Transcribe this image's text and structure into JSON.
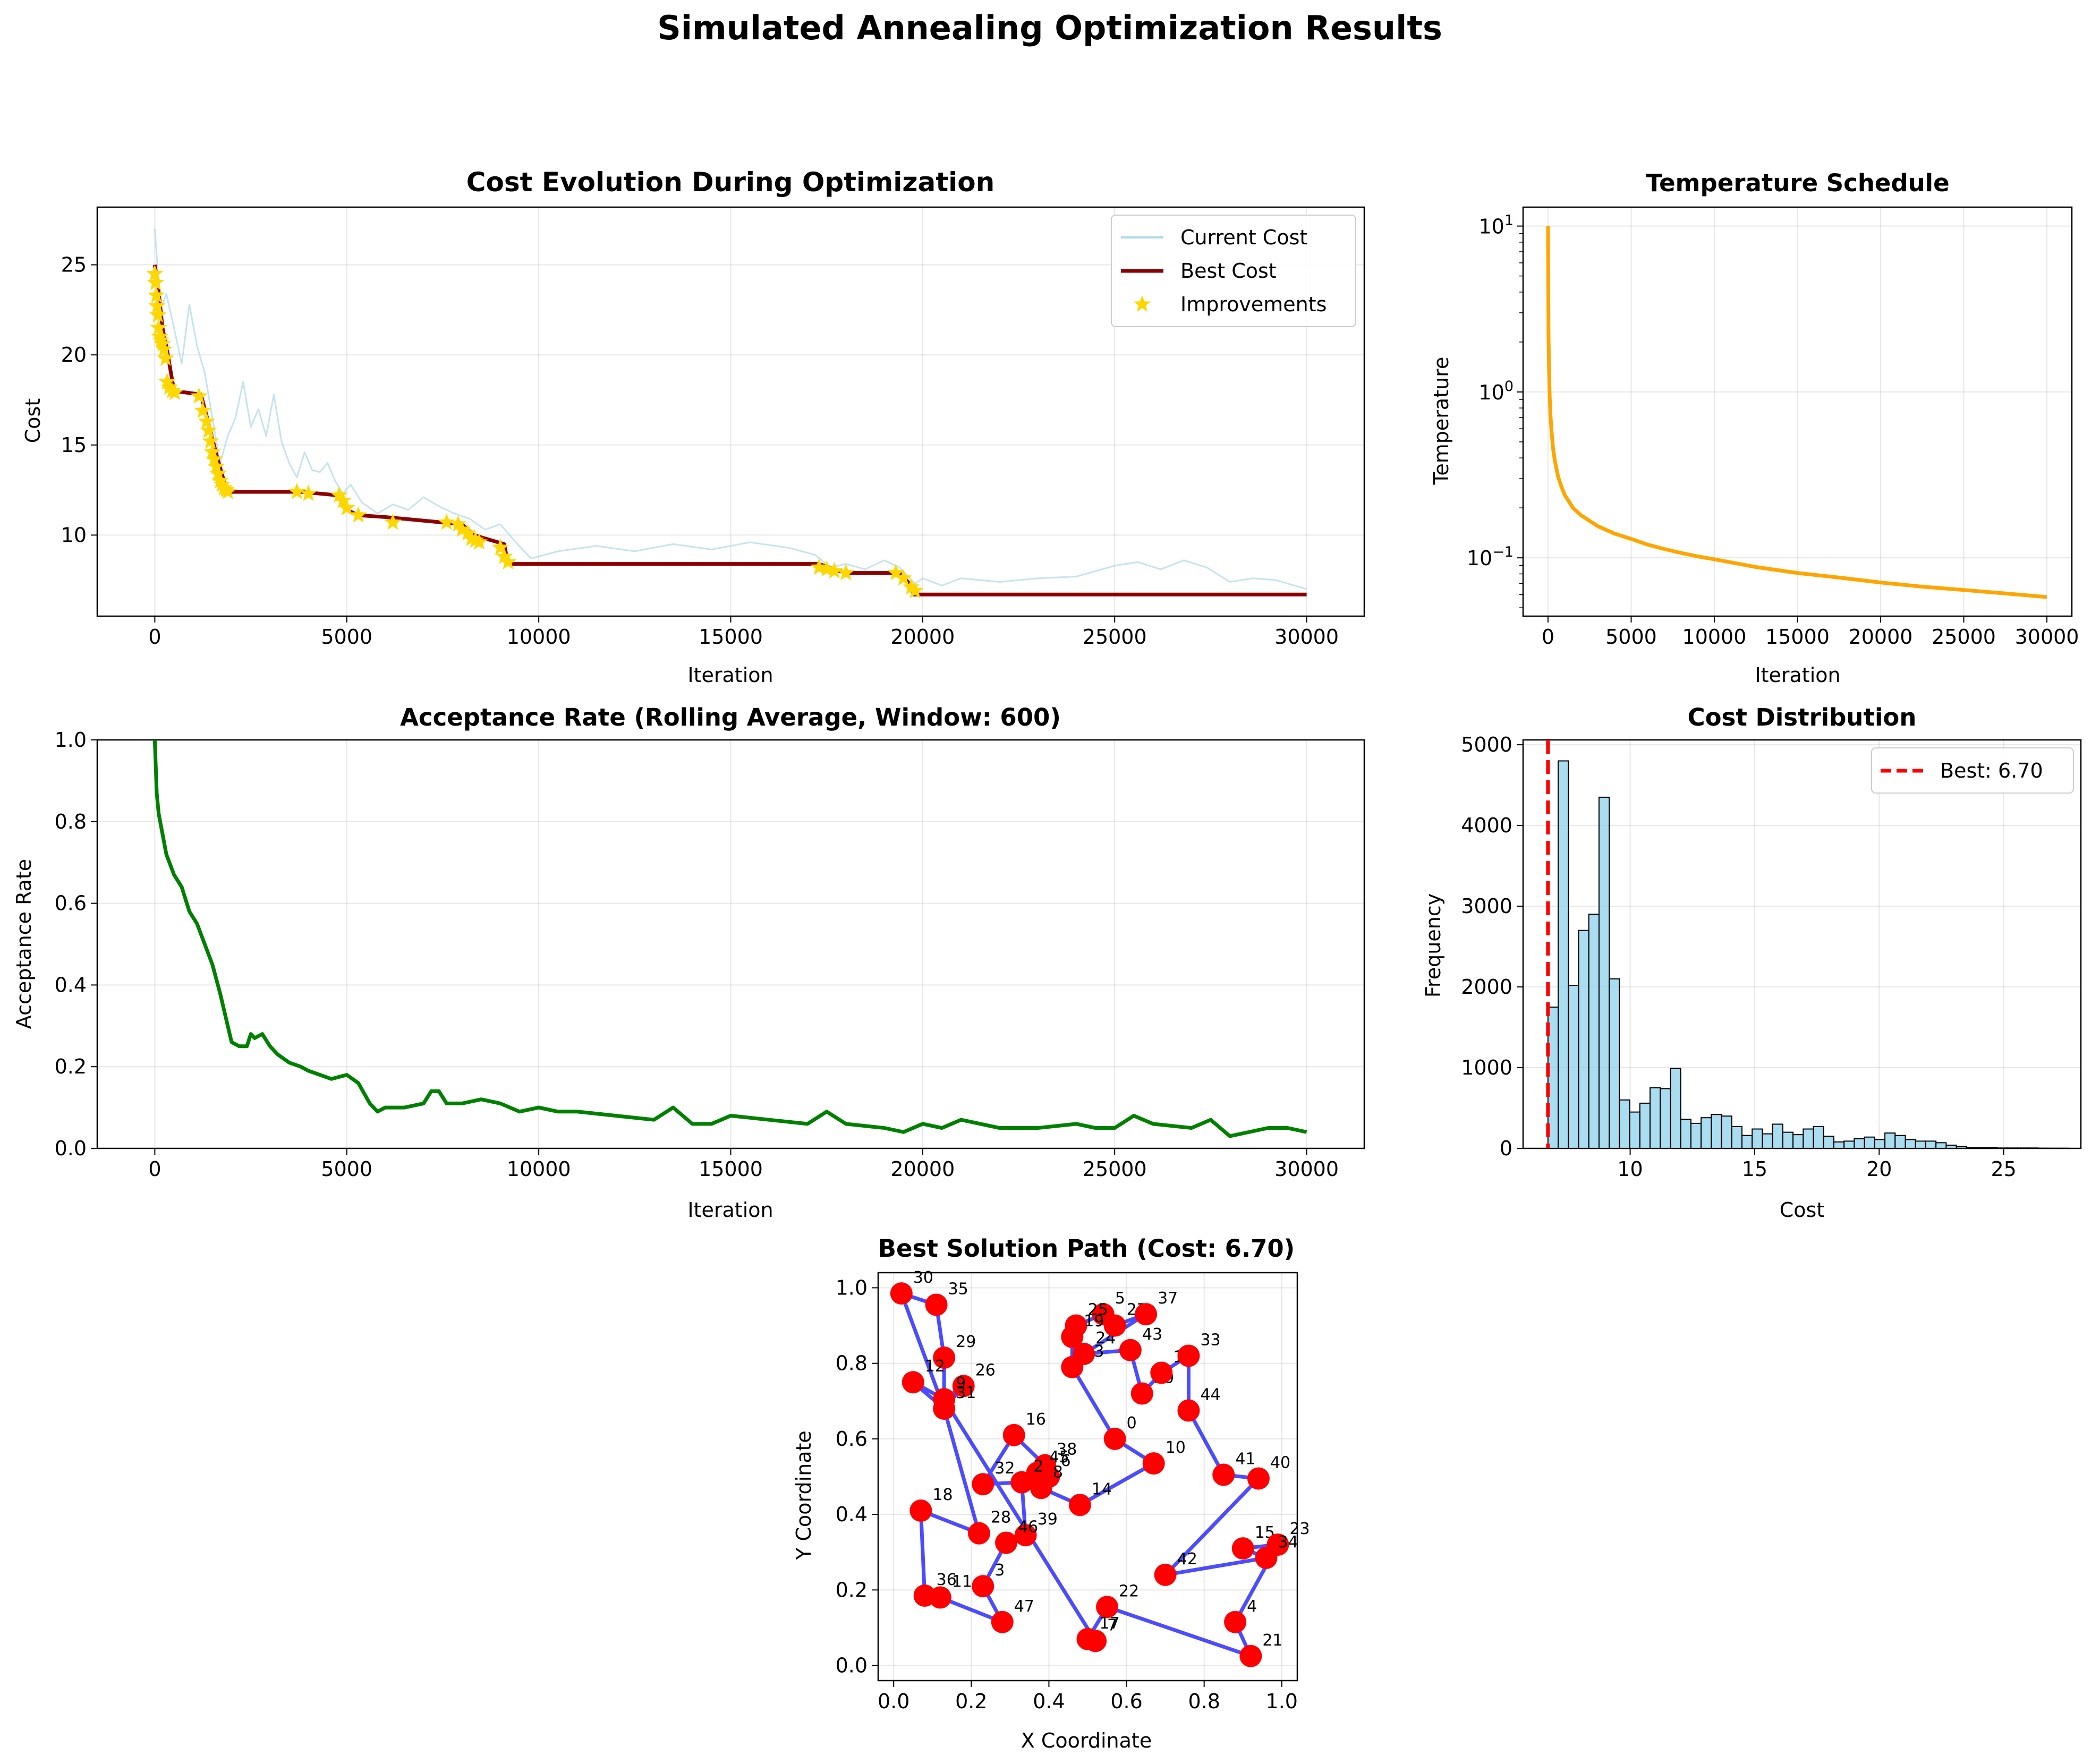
{
  "suptitle": "Simulated Annealing Optimization Results",
  "colors": {
    "current": "#add8e6",
    "best": "#8b0000",
    "improve": "#ffd700",
    "temp": "#ffa500",
    "accept": "#008000",
    "hist": "#87ceeb",
    "bestline": "#ff0000",
    "path": "#0000ff",
    "city": "#ff0000"
  },
  "chart_data": [
    {
      "type": "line",
      "title": "Cost Evolution During Optimization",
      "xlabel": "Iteration",
      "ylabel": "Cost",
      "xlim": [
        -1500,
        31500
      ],
      "ylim": [
        5.5,
        28.2
      ],
      "xticks": [
        0,
        5000,
        10000,
        15000,
        20000,
        25000,
        30000
      ],
      "yticks": [
        10,
        15,
        20,
        25
      ],
      "legend": {
        "position": "top-right",
        "entries": [
          "Current Cost",
          "Best Cost",
          "Improvements"
        ]
      },
      "grid": true,
      "series": [
        {
          "name": "Current Cost",
          "x": [
            0,
            150,
            300,
            500,
            700,
            900,
            1100,
            1300,
            1500,
            1700,
            1900,
            2100,
            2300,
            2500,
            2700,
            2900,
            3100,
            3300,
            3500,
            3700,
            3900,
            4100,
            4300,
            4500,
            4700,
            4900,
            5100,
            5400,
            5800,
            6200,
            6600,
            7000,
            7400,
            7800,
            8200,
            8600,
            9000,
            9400,
            9800,
            10500,
            11500,
            12500,
            13500,
            14500,
            15500,
            16500,
            17200,
            17600,
            18000,
            18500,
            19000,
            19400,
            19800,
            20000,
            20500,
            21000,
            22000,
            23000,
            24000,
            25000,
            25600,
            26200,
            26800,
            27400,
            28000,
            28600,
            29200,
            30000
          ],
          "y": [
            27,
            22.5,
            23.4,
            21.5,
            19.5,
            22.8,
            20.5,
            19,
            16.5,
            14,
            15.5,
            16.5,
            18.5,
            16,
            17,
            15.5,
            17.8,
            15.2,
            14,
            13.2,
            14.6,
            13.6,
            13.5,
            14,
            13,
            12.3,
            12.8,
            11.8,
            11.2,
            11.7,
            11.4,
            12.1,
            11.6,
            11.2,
            10.9,
            10.3,
            10.6,
            9.6,
            8.7,
            9.1,
            9.4,
            9.1,
            9.5,
            9.2,
            9.6,
            9.3,
            8.9,
            8.2,
            8.4,
            8.1,
            8.6,
            8.2,
            7.3,
            7.6,
            7.2,
            7.6,
            7.4,
            7.6,
            7.7,
            8.3,
            8.5,
            8.1,
            8.6,
            8.2,
            7.4,
            7.6,
            7.5,
            7.0
          ]
        },
        {
          "name": "Best Cost",
          "x": [
            0,
            100,
            200,
            300,
            500,
            1200,
            1400,
            1600,
            1800,
            1900,
            3800,
            4800,
            5000,
            5300,
            6000,
            7500,
            8000,
            8300,
            9100,
            9200,
            17300,
            17700,
            18000,
            19400,
            19700,
            19750,
            30000
          ],
          "y": [
            25,
            23.5,
            21.5,
            20.5,
            18,
            17.8,
            16.2,
            14.5,
            13,
            12.4,
            12.4,
            12.2,
            11.4,
            11.1,
            11.0,
            10.7,
            10.6,
            10.0,
            9.5,
            8.4,
            8.4,
            8.1,
            7.9,
            7.9,
            7.2,
            6.7,
            6.7
          ]
        },
        {
          "name": "Improvements",
          "x": [
            0,
            20,
            40,
            60,
            80,
            100,
            130,
            160,
            200,
            240,
            280,
            320,
            380,
            450,
            520,
            1150,
            1250,
            1350,
            1400,
            1450,
            1500,
            1550,
            1600,
            1650,
            1700,
            1750,
            1800,
            1850,
            1900,
            3700,
            4000,
            4800,
            4900,
            5000,
            5300,
            6200,
            7600,
            7900,
            8000,
            8150,
            8250,
            8350,
            8450,
            9000,
            9100,
            9200,
            17300,
            17500,
            17700,
            18000,
            19300,
            19500,
            19700,
            19800
          ],
          "y": [
            24.5,
            24,
            23.3,
            22.7,
            22.2,
            21.5,
            21,
            20.8,
            20.6,
            20.3,
            19.8,
            18.5,
            18.2,
            18.0,
            17.9,
            17.7,
            16.9,
            16.3,
            15.8,
            15.2,
            14.6,
            14.2,
            13.8,
            13.4,
            13.0,
            12.8,
            12.6,
            12.5,
            12.4,
            12.4,
            12.3,
            12.2,
            11.9,
            11.5,
            11.1,
            10.7,
            10.7,
            10.6,
            10.3,
            10.1,
            9.8,
            9.7,
            9.6,
            9.3,
            8.8,
            8.5,
            8.2,
            8.1,
            8.0,
            7.9,
            7.9,
            7.6,
            7.1,
            6.9
          ]
        }
      ]
    },
    {
      "type": "line",
      "title": "Temperature Schedule",
      "xlabel": "Iteration",
      "ylabel": "Temperature",
      "scale": "log",
      "xlim": [
        -1500,
        31500
      ],
      "ylim": [
        0.0445,
        13
      ],
      "xticks": [
        0,
        5000,
        10000,
        15000,
        20000,
        25000,
        30000
      ],
      "yticks": [
        {
          "value": 10,
          "base": "10",
          "exp": "1"
        },
        {
          "value": 1,
          "base": "10",
          "exp": "0"
        },
        {
          "value": 0.1,
          "base": "10",
          "exp": "−1"
        }
      ],
      "grid": true,
      "series": [
        {
          "x": [
            0,
            30,
            60,
            100,
            150,
            200,
            300,
            400,
            600,
            800,
            1000,
            1500,
            2000,
            3000,
            4000,
            5000,
            6000,
            7000,
            8000,
            9000,
            10000,
            12500,
            15000,
            17500,
            20000,
            22500,
            25000,
            27500,
            30000
          ],
          "y": [
            10,
            2.2,
            1.4,
            0.95,
            0.72,
            0.6,
            0.46,
            0.39,
            0.31,
            0.27,
            0.24,
            0.2,
            0.18,
            0.155,
            0.14,
            0.13,
            0.12,
            0.113,
            0.107,
            0.102,
            0.098,
            0.088,
            0.081,
            0.076,
            0.071,
            0.067,
            0.064,
            0.061,
            0.058
          ]
        }
      ]
    },
    {
      "type": "line",
      "title": "Acceptance Rate (Rolling Average, Window: 600)",
      "xlabel": "Iteration",
      "ylabel": "Acceptance Rate",
      "xlim": [
        -1500,
        31500
      ],
      "ylim": [
        0,
        1
      ],
      "xticks": [
        0,
        5000,
        10000,
        15000,
        20000,
        25000,
        30000
      ],
      "yticks": [
        0.0,
        0.2,
        0.4,
        0.6,
        0.8,
        1.0
      ],
      "grid": true,
      "series": [
        {
          "x": [
            0,
            50,
            100,
            200,
            300,
            500,
            700,
            900,
            1100,
            1300,
            1500,
            1700,
            1800,
            1900,
            2000,
            2200,
            2400,
            2500,
            2600,
            2800,
            3000,
            3200,
            3500,
            3800,
            4000,
            4300,
            4600,
            5000,
            5300,
            5600,
            5800,
            6000,
            6500,
            7000,
            7200,
            7400,
            7600,
            8000,
            8500,
            9000,
            9500,
            10000,
            10500,
            11000,
            12000,
            13000,
            13500,
            14000,
            14500,
            15000,
            16000,
            17000,
            17500,
            18000,
            19000,
            19500,
            20000,
            20500,
            21000,
            22000,
            23000,
            24000,
            24500,
            25000,
            25500,
            26000,
            27000,
            27500,
            28000,
            28500,
            29000,
            29500,
            30000
          ],
          "y": [
            1.0,
            0.87,
            0.82,
            0.77,
            0.72,
            0.67,
            0.64,
            0.58,
            0.55,
            0.5,
            0.45,
            0.38,
            0.34,
            0.3,
            0.26,
            0.25,
            0.25,
            0.28,
            0.27,
            0.28,
            0.25,
            0.23,
            0.21,
            0.2,
            0.19,
            0.18,
            0.17,
            0.18,
            0.16,
            0.11,
            0.09,
            0.1,
            0.1,
            0.11,
            0.14,
            0.14,
            0.11,
            0.11,
            0.12,
            0.11,
            0.09,
            0.1,
            0.09,
            0.09,
            0.08,
            0.07,
            0.1,
            0.06,
            0.06,
            0.08,
            0.07,
            0.06,
            0.09,
            0.06,
            0.05,
            0.04,
            0.06,
            0.05,
            0.07,
            0.05,
            0.05,
            0.06,
            0.05,
            0.05,
            0.08,
            0.06,
            0.05,
            0.07,
            0.03,
            0.04,
            0.05,
            0.05,
            0.04
          ]
        }
      ]
    },
    {
      "type": "bar",
      "title": "Cost Distribution",
      "xlabel": "Cost",
      "ylabel": "Frequency",
      "xlim": [
        5.7,
        28.1
      ],
      "ylim": [
        0,
        5060
      ],
      "xticks": [
        10,
        15,
        20,
        25
      ],
      "yticks": [
        0,
        1000,
        2000,
        3000,
        4000,
        5000
      ],
      "legend": {
        "position": "top-right",
        "entries": [
          "Best: 6.70"
        ]
      },
      "grid": true,
      "bin_start": 6.7,
      "bin_width": 0.41,
      "values": [
        1750,
        4800,
        2020,
        2700,
        2900,
        4350,
        2100,
        600,
        450,
        560,
        750,
        740,
        990,
        360,
        310,
        380,
        420,
        400,
        270,
        160,
        240,
        180,
        300,
        200,
        170,
        240,
        270,
        150,
        80,
        90,
        120,
        140,
        110,
        190,
        160,
        110,
        90,
        90,
        70,
        40,
        20,
        10,
        10,
        10,
        5,
        5,
        5,
        5,
        3,
        2,
        2
      ],
      "best_value": 6.7,
      "best_label": "Best: 6.70"
    },
    {
      "type": "scatter",
      "title": "Best Solution Path (Cost: 6.70)",
      "xlabel": "X Coordinate",
      "ylabel": "Y Coordinate",
      "xlim": [
        -0.04,
        1.04
      ],
      "ylim": [
        -0.04,
        1.04
      ],
      "xticks": [
        0.0,
        0.2,
        0.4,
        0.6,
        0.8,
        1.0
      ],
      "yticks": [
        0.0,
        0.2,
        0.4,
        0.6,
        0.8,
        1.0
      ],
      "grid": true,
      "cities": [
        {
          "id": "30",
          "x": 0.02,
          "y": 0.985
        },
        {
          "id": "35",
          "x": 0.11,
          "y": 0.955
        },
        {
          "id": "29",
          "x": 0.13,
          "y": 0.815
        },
        {
          "id": "12",
          "x": 0.05,
          "y": 0.75
        },
        {
          "id": "26",
          "x": 0.18,
          "y": 0.74
        },
        {
          "id": "9",
          "x": 0.13,
          "y": 0.705
        },
        {
          "id": "31",
          "x": 0.13,
          "y": 0.68
        },
        {
          "id": "16",
          "x": 0.31,
          "y": 0.61
        },
        {
          "id": "38",
          "x": 0.39,
          "y": 0.53
        },
        {
          "id": "45",
          "x": 0.37,
          "y": 0.51
        },
        {
          "id": "6",
          "x": 0.4,
          "y": 0.5
        },
        {
          "id": "8",
          "x": 0.38,
          "y": 0.47
        },
        {
          "id": "14",
          "x": 0.48,
          "y": 0.425
        },
        {
          "id": "10",
          "x": 0.67,
          "y": 0.535
        },
        {
          "id": "0",
          "x": 0.57,
          "y": 0.6
        },
        {
          "id": "13",
          "x": 0.46,
          "y": 0.79
        },
        {
          "id": "24",
          "x": 0.49,
          "y": 0.825
        },
        {
          "id": "43",
          "x": 0.61,
          "y": 0.835
        },
        {
          "id": "27",
          "x": 0.57,
          "y": 0.9
        },
        {
          "id": "5",
          "x": 0.54,
          "y": 0.93
        },
        {
          "id": "37",
          "x": 0.65,
          "y": 0.93
        },
        {
          "id": "25",
          "x": 0.47,
          "y": 0.9
        },
        {
          "id": "19",
          "x": 0.46,
          "y": 0.87
        },
        {
          "id": "20",
          "x": 0.64,
          "y": 0.72
        },
        {
          "id": "1",
          "x": 0.69,
          "y": 0.775
        },
        {
          "id": "33",
          "x": 0.76,
          "y": 0.82
        },
        {
          "id": "44",
          "x": 0.76,
          "y": 0.675
        },
        {
          "id": "41",
          "x": 0.85,
          "y": 0.505
        },
        {
          "id": "40",
          "x": 0.94,
          "y": 0.495
        },
        {
          "id": "42",
          "x": 0.7,
          "y": 0.24
        },
        {
          "id": "15",
          "x": 0.9,
          "y": 0.31
        },
        {
          "id": "23",
          "x": 0.99,
          "y": 0.32
        },
        {
          "id": "34",
          "x": 0.96,
          "y": 0.285
        },
        {
          "id": "4",
          "x": 0.88,
          "y": 0.115
        },
        {
          "id": "21",
          "x": 0.92,
          "y": 0.025
        },
        {
          "id": "22",
          "x": 0.55,
          "y": 0.155
        },
        {
          "id": "17",
          "x": 0.5,
          "y": 0.07
        },
        {
          "id": "7",
          "x": 0.52,
          "y": 0.065
        },
        {
          "id": "39",
          "x": 0.34,
          "y": 0.345
        },
        {
          "id": "46",
          "x": 0.29,
          "y": 0.325
        },
        {
          "id": "28",
          "x": 0.22,
          "y": 0.35
        },
        {
          "id": "32",
          "x": 0.23,
          "y": 0.48
        },
        {
          "id": "2",
          "x": 0.33,
          "y": 0.485
        },
        {
          "id": "18",
          "x": 0.07,
          "y": 0.41
        },
        {
          "id": "36",
          "x": 0.08,
          "y": 0.185
        },
        {
          "id": "11",
          "x": 0.12,
          "y": 0.18
        },
        {
          "id": "3",
          "x": 0.23,
          "y": 0.21
        },
        {
          "id": "47",
          "x": 0.28,
          "y": 0.115
        }
      ],
      "tour": [
        "30",
        "35",
        "29",
        "9",
        "12",
        "31",
        "28",
        "18",
        "36",
        "11",
        "47",
        "3",
        "46",
        "39",
        "2",
        "32",
        "16",
        "38",
        "45",
        "6",
        "8",
        "14",
        "10",
        "0",
        "13",
        "19",
        "25",
        "5",
        "27",
        "37",
        "24",
        "43",
        "20",
        "1",
        "33",
        "44",
        "41",
        "40",
        "42",
        "34",
        "15",
        "23",
        "4",
        "21",
        "22",
        "17",
        "7",
        "9",
        "26",
        "31",
        "30"
      ]
    }
  ]
}
